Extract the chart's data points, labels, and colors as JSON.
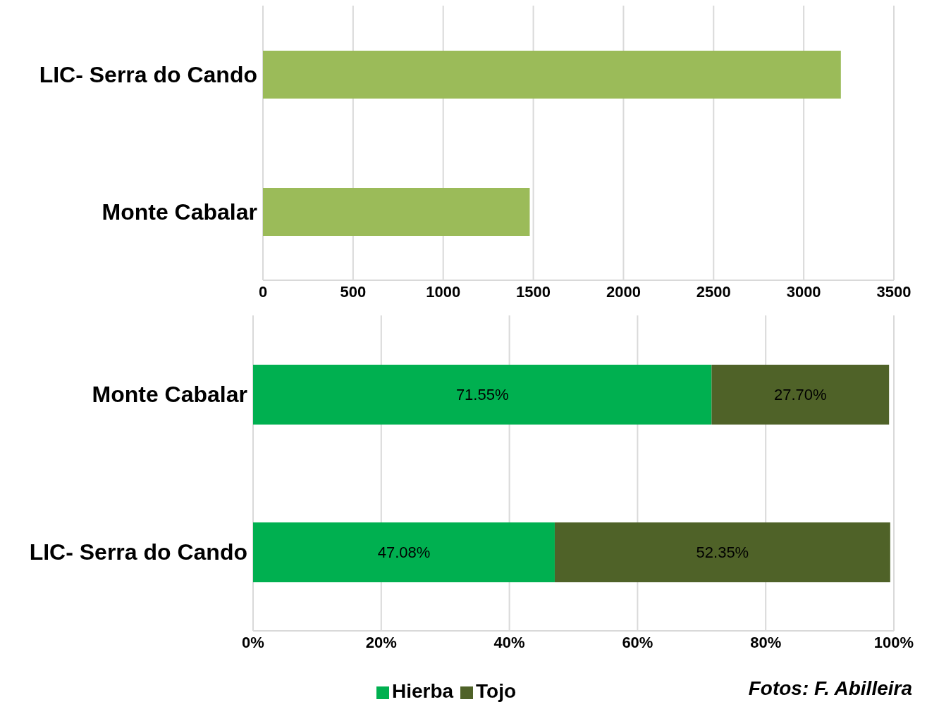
{
  "chart_data": [
    {
      "type": "bar",
      "orientation": "horizontal",
      "categories": [
        "LIC- Serra do Cando",
        "Monte Cabalar"
      ],
      "values": [
        3206,
        1480
      ],
      "color": "#9bbb59",
      "xlim": [
        0,
        3500
      ],
      "xticks": [
        0,
        500,
        1000,
        1500,
        2000,
        2500,
        3000,
        3500
      ],
      "grid": "x"
    },
    {
      "type": "bar",
      "orientation": "horizontal",
      "stacked": true,
      "categories": [
        "Monte Cabalar",
        "LIC- Serra do Cando"
      ],
      "series": [
        {
          "name": "Hierba",
          "color": "#00b050",
          "values": [
            71.55,
            47.08
          ],
          "value_labels": [
            "71.55%",
            "47.08%"
          ]
        },
        {
          "name": "Tojo",
          "color": "#4f6228",
          "values": [
            27.7,
            52.35
          ],
          "value_labels": [
            "27.70%",
            "52.35%"
          ]
        }
      ],
      "xlim": [
        0,
        100
      ],
      "xticks": [
        {
          "value": 0,
          "label": "0%"
        },
        {
          "value": 20,
          "label": "20%"
        },
        {
          "value": 40,
          "label": "40%"
        },
        {
          "value": 60,
          "label": "60%"
        },
        {
          "value": 80,
          "label": "80%"
        },
        {
          "value": 100,
          "label": "100%"
        }
      ],
      "grid": "x",
      "legend": "bottom",
      "annotations": [
        "Fotos: F. Abilleira"
      ]
    }
  ]
}
